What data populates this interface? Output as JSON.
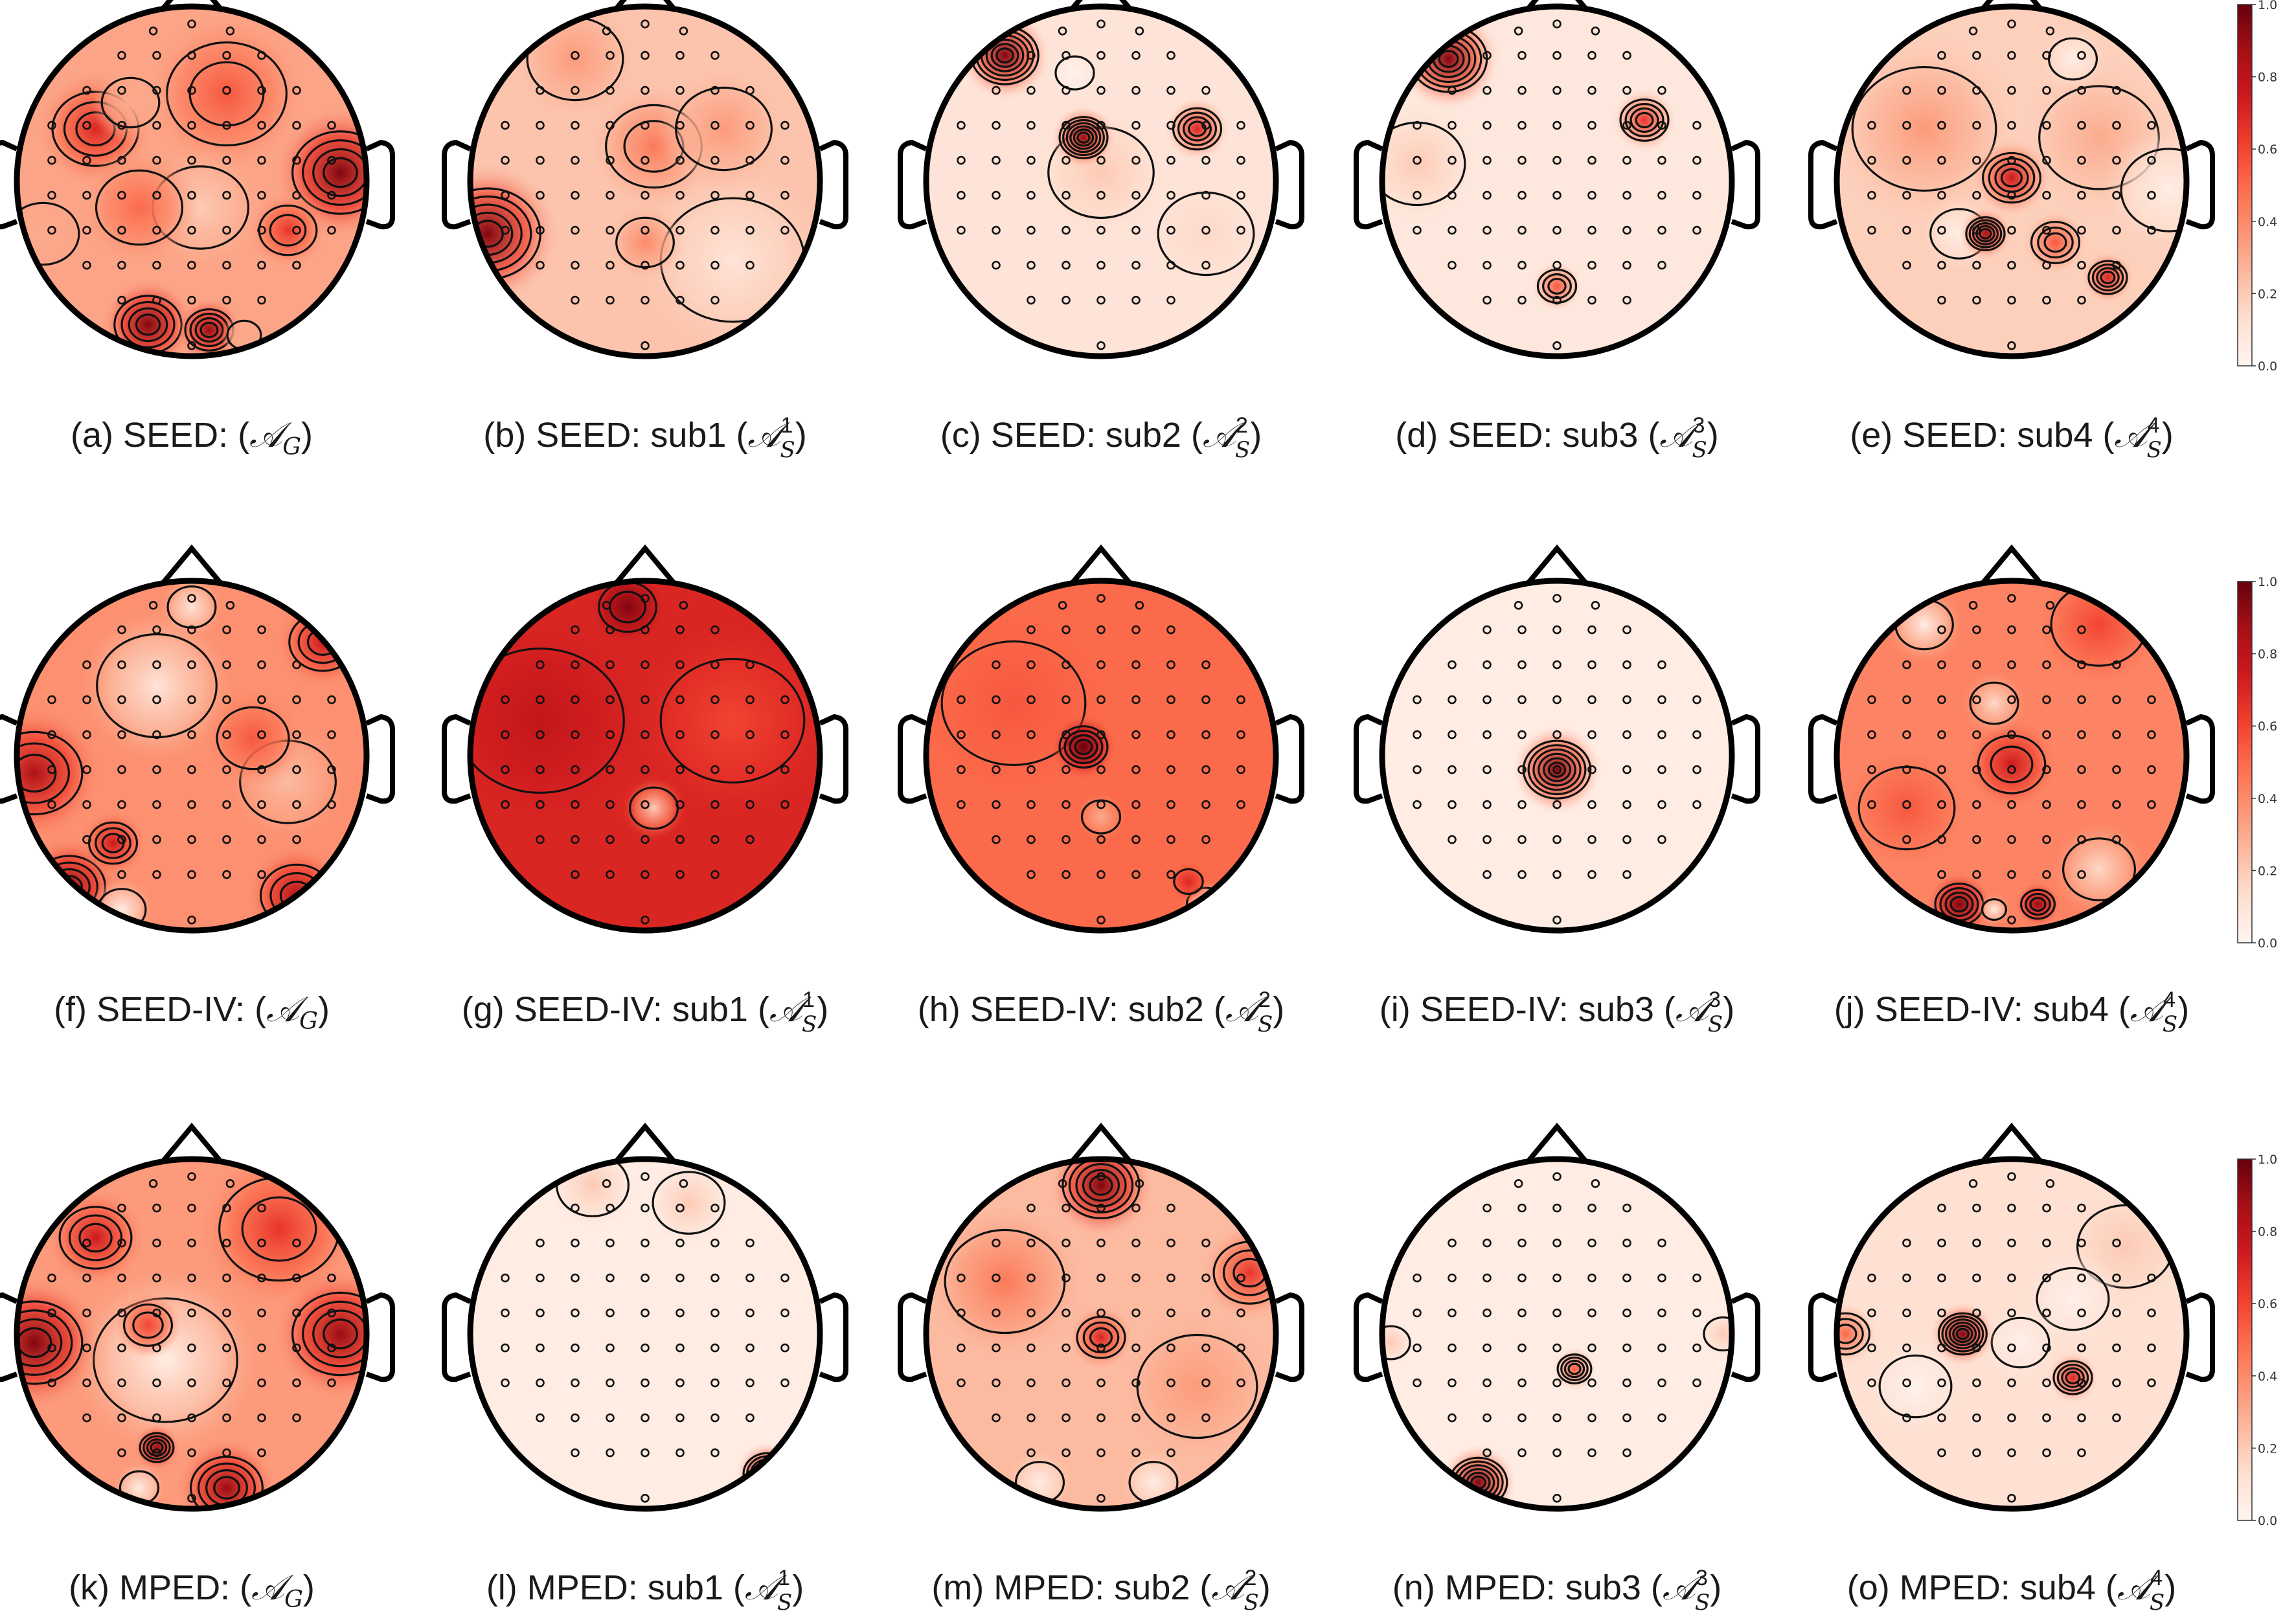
{
  "chart_data": {
    "type": "heatmap",
    "description_kind": "EEG topographic maps (adjacency / attention weights per electrode)",
    "colormap": {
      "name": "Reds",
      "low": "#fff5f0",
      "high": "#67000d"
    },
    "colorbar": {
      "min": 0.0,
      "max": 1.0,
      "ticks": [
        "0.0",
        "0.2",
        "0.4",
        "0.6",
        "0.8",
        "1.0"
      ]
    },
    "rows": [
      {
        "dataset": "SEED",
        "panels": [
          {
            "caption_prefix": "(a) SEED: ",
            "symbol": "𝒜",
            "sub": "G",
            "sup": "",
            "base": 0.32,
            "hotspots": [
              [
                -0.55,
                -0.3,
                0.18,
                0.7
              ],
              [
                0.85,
                -0.05,
                0.2,
                0.95
              ],
              [
                0.55,
                0.28,
                0.12,
                0.65
              ],
              [
                -0.25,
                0.82,
                0.14,
                0.95
              ],
              [
                0.1,
                0.85,
                0.1,
                0.9
              ],
              [
                0.2,
                -0.5,
                0.25,
                0.55
              ],
              [
                -0.3,
                0.15,
                0.18,
                0.5
              ]
            ],
            "coldspots": [
              [
                -0.35,
                -0.45,
                0.12,
                0.3
              ],
              [
                -0.85,
                0.3,
                0.15,
                0.3
              ],
              [
                0.3,
                0.88,
                0.07,
                0.3
              ],
              [
                0.05,
                0.15,
                0.2,
                0.2
              ]
            ]
          },
          {
            "caption_prefix": "(b) SEED: sub1 ",
            "symbol": "𝒜",
            "sub": "S",
            "sup": "1",
            "base": 0.22,
            "hotspots": [
              [
                -0.9,
                0.3,
                0.22,
                0.95
              ],
              [
                0.05,
                -0.2,
                0.2,
                0.45
              ],
              [
                -0.4,
                -0.7,
                0.2,
                0.35
              ],
              [
                0.0,
                0.35,
                0.12,
                0.4
              ],
              [
                0.45,
                -0.3,
                0.2,
                0.35
              ]
            ],
            "coldspots": [
              [
                0.5,
                0.45,
                0.3,
                0.1
              ]
            ]
          },
          {
            "caption_prefix": "(c) SEED: sub2 ",
            "symbol": "𝒜",
            "sub": "S",
            "sup": "2",
            "base": 0.1,
            "hotspots": [
              [
                -0.55,
                -0.72,
                0.14,
                0.95
              ],
              [
                -0.1,
                -0.25,
                0.1,
                0.9
              ],
              [
                0.55,
                -0.3,
                0.1,
                0.7
              ],
              [
                0.0,
                -0.05,
                0.22,
                0.2
              ],
              [
                0.6,
                0.3,
                0.2,
                0.15
              ]
            ],
            "coldspots": [
              [
                -0.15,
                -0.62,
                0.08,
                0.02
              ]
            ]
          },
          {
            "caption_prefix": "(d) SEED: sub3 ",
            "symbol": "𝒜",
            "sub": "S",
            "sup": "3",
            "base": 0.08,
            "hotspots": [
              [
                -0.62,
                -0.7,
                0.16,
                0.95
              ],
              [
                0.5,
                -0.35,
                0.1,
                0.65
              ],
              [
                0.0,
                0.6,
                0.08,
                0.55
              ],
              [
                -0.8,
                -0.1,
                0.2,
                0.2
              ]
            ],
            "coldspots": []
          },
          {
            "caption_prefix": "(e) SEED: sub4 ",
            "symbol": "𝒜",
            "sub": "S",
            "sup": "4",
            "base": 0.18,
            "hotspots": [
              [
                0.0,
                -0.02,
                0.12,
                0.75
              ],
              [
                -0.15,
                0.3,
                0.08,
                0.85
              ],
              [
                0.55,
                0.55,
                0.08,
                0.7
              ],
              [
                -0.5,
                -0.3,
                0.3,
                0.35
              ],
              [
                0.5,
                -0.25,
                0.25,
                0.3
              ],
              [
                0.25,
                0.35,
                0.1,
                0.55
              ]
            ],
            "coldspots": [
              [
                0.9,
                0.05,
                0.2,
                0.05
              ],
              [
                0.35,
                -0.7,
                0.1,
                0.05
              ],
              [
                -0.3,
                0.3,
                0.12,
                0.05
              ]
            ]
          }
        ]
      },
      {
        "dataset": "SEED-IV",
        "panels": [
          {
            "caption_prefix": "(f) SEED-IV: ",
            "symbol": "𝒜",
            "sub": "G",
            "sup": "",
            "base": 0.38,
            "hotspots": [
              [
                -0.9,
                0.1,
                0.2,
                0.85
              ],
              [
                -0.7,
                0.75,
                0.15,
                0.9
              ],
              [
                0.6,
                0.8,
                0.15,
                0.85
              ],
              [
                0.75,
                -0.65,
                0.14,
                0.75
              ],
              [
                -0.45,
                0.5,
                0.1,
                0.75
              ],
              [
                0.35,
                -0.1,
                0.15,
                0.55
              ]
            ],
            "coldspots": [
              [
                -0.2,
                -0.4,
                0.25,
                0.1
              ],
              [
                0.0,
                -0.85,
                0.1,
                0.1
              ],
              [
                -0.4,
                0.88,
                0.1,
                0.05
              ],
              [
                0.55,
                0.15,
                0.2,
                0.25
              ]
            ]
          },
          {
            "caption_prefix": "(g) SEED-IV: sub1 ",
            "symbol": "𝒜",
            "sub": "S",
            "sup": "1",
            "base": 0.7,
            "hotspots": [
              [
                -0.1,
                -0.85,
                0.12,
                0.95
              ],
              [
                -0.6,
                -0.2,
                0.35,
                0.78
              ]
            ],
            "coldspots": [
              [
                0.05,
                0.3,
                0.1,
                0.2
              ],
              [
                0.5,
                -0.2,
                0.3,
                0.6
              ]
            ]
          },
          {
            "caption_prefix": "(h) SEED-IV: sub2 ",
            "symbol": "𝒜",
            "sub": "S",
            "sup": "2",
            "base": 0.5,
            "hotspots": [
              [
                -0.1,
                -0.05,
                0.1,
                1.0
              ],
              [
                0.5,
                0.72,
                0.06,
                0.7
              ],
              [
                -0.5,
                -0.3,
                0.3,
                0.55
              ]
            ],
            "coldspots": [
              [
                0.6,
                0.85,
                0.08,
                0.1
              ],
              [
                0.0,
                0.35,
                0.08,
                0.3
              ]
            ]
          },
          {
            "caption_prefix": "(i) SEED-IV: sub3 ",
            "symbol": "𝒜",
            "sub": "S",
            "sup": "3",
            "base": 0.05,
            "hotspots": [
              [
                0.0,
                0.08,
                0.14,
                0.95
              ]
            ],
            "coldspots": []
          },
          {
            "caption_prefix": "(j) SEED-IV: sub4 ",
            "symbol": "𝒜",
            "sub": "S",
            "sup": "4",
            "base": 0.42,
            "hotspots": [
              [
                0.0,
                0.05,
                0.14,
                0.75
              ],
              [
                -0.3,
                0.85,
                0.1,
                0.95
              ],
              [
                0.15,
                0.85,
                0.07,
                0.9
              ],
              [
                0.5,
                -0.75,
                0.2,
                0.6
              ],
              [
                -0.6,
                0.3,
                0.2,
                0.55
              ]
            ],
            "coldspots": [
              [
                -0.5,
                -0.75,
                0.12,
                0.05
              ],
              [
                -0.1,
                -0.3,
                0.1,
                0.15
              ],
              [
                0.5,
                0.65,
                0.15,
                0.15
              ],
              [
                -0.1,
                0.88,
                0.05,
                0.05
              ]
            ]
          }
        ]
      },
      {
        "dataset": "MPED",
        "panels": [
          {
            "caption_prefix": "(k) MPED: ",
            "symbol": "𝒜",
            "sub": "G",
            "sup": "",
            "base": 0.35,
            "hotspots": [
              [
                -0.9,
                0.05,
                0.2,
                0.95
              ],
              [
                0.85,
                0.0,
                0.2,
                0.9
              ],
              [
                -0.2,
                0.65,
                0.07,
                0.9
              ],
              [
                0.2,
                0.88,
                0.15,
                0.9
              ],
              [
                0.5,
                -0.6,
                0.25,
                0.65
              ],
              [
                -0.55,
                -0.55,
                0.15,
                0.75
              ],
              [
                -0.25,
                -0.05,
                0.1,
                0.6
              ]
            ],
            "coldspots": [
              [
                -0.15,
                0.15,
                0.3,
                0.05
              ],
              [
                -0.3,
                0.88,
                0.08,
                0.05
              ]
            ]
          },
          {
            "caption_prefix": "(l) MPED: sub1 ",
            "symbol": "𝒜",
            "sub": "S",
            "sup": "1",
            "base": 0.05,
            "hotspots": [
              [
                0.7,
                0.8,
                0.1,
                0.95
              ],
              [
                -0.3,
                -0.85,
                0.15,
                0.2
              ],
              [
                0.25,
                -0.75,
                0.15,
                0.2
              ]
            ],
            "coldspots": []
          },
          {
            "caption_prefix": "(m) MPED: sub2 ",
            "symbol": "𝒜",
            "sub": "S",
            "sup": "2",
            "base": 0.25,
            "hotspots": [
              [
                0.0,
                -0.85,
                0.16,
                0.95
              ],
              [
                0.0,
                0.02,
                0.1,
                0.7
              ],
              [
                0.85,
                -0.35,
                0.15,
                0.65
              ],
              [
                -0.55,
                -0.3,
                0.25,
                0.45
              ],
              [
                0.55,
                0.3,
                0.25,
                0.35
              ]
            ],
            "coldspots": [
              [
                -0.35,
                0.85,
                0.1,
                0.05
              ],
              [
                0.3,
                0.85,
                0.1,
                0.05
              ]
            ]
          },
          {
            "caption_prefix": "(n) MPED: sub3 ",
            "symbol": "𝒜",
            "sub": "S",
            "sup": "3",
            "base": 0.05,
            "hotspots": [
              [
                -0.45,
                0.85,
                0.12,
                0.95
              ],
              [
                0.1,
                0.2,
                0.07,
                0.55
              ],
              [
                0.95,
                0.0,
                0.08,
                0.2
              ],
              [
                -0.95,
                0.05,
                0.08,
                0.2
              ]
            ],
            "coldspots": []
          },
          {
            "caption_prefix": "(o) MPED: sub4 ",
            "symbol": "𝒜",
            "sub": "S",
            "sup": "4",
            "base": 0.12,
            "hotspots": [
              [
                -0.28,
                0.0,
                0.1,
                0.95
              ],
              [
                0.35,
                0.25,
                0.08,
                0.7
              ],
              [
                -0.95,
                0.0,
                0.1,
                0.5
              ],
              [
                0.65,
                -0.5,
                0.2,
                0.2
              ]
            ],
            "coldspots": [
              [
                -0.55,
                0.3,
                0.15,
                0.02
              ],
              [
                0.05,
                0.05,
                0.12,
                0.03
              ],
              [
                0.35,
                -0.2,
                0.15,
                0.03
              ]
            ]
          }
        ]
      }
    ],
    "electrode_count": 62
  }
}
